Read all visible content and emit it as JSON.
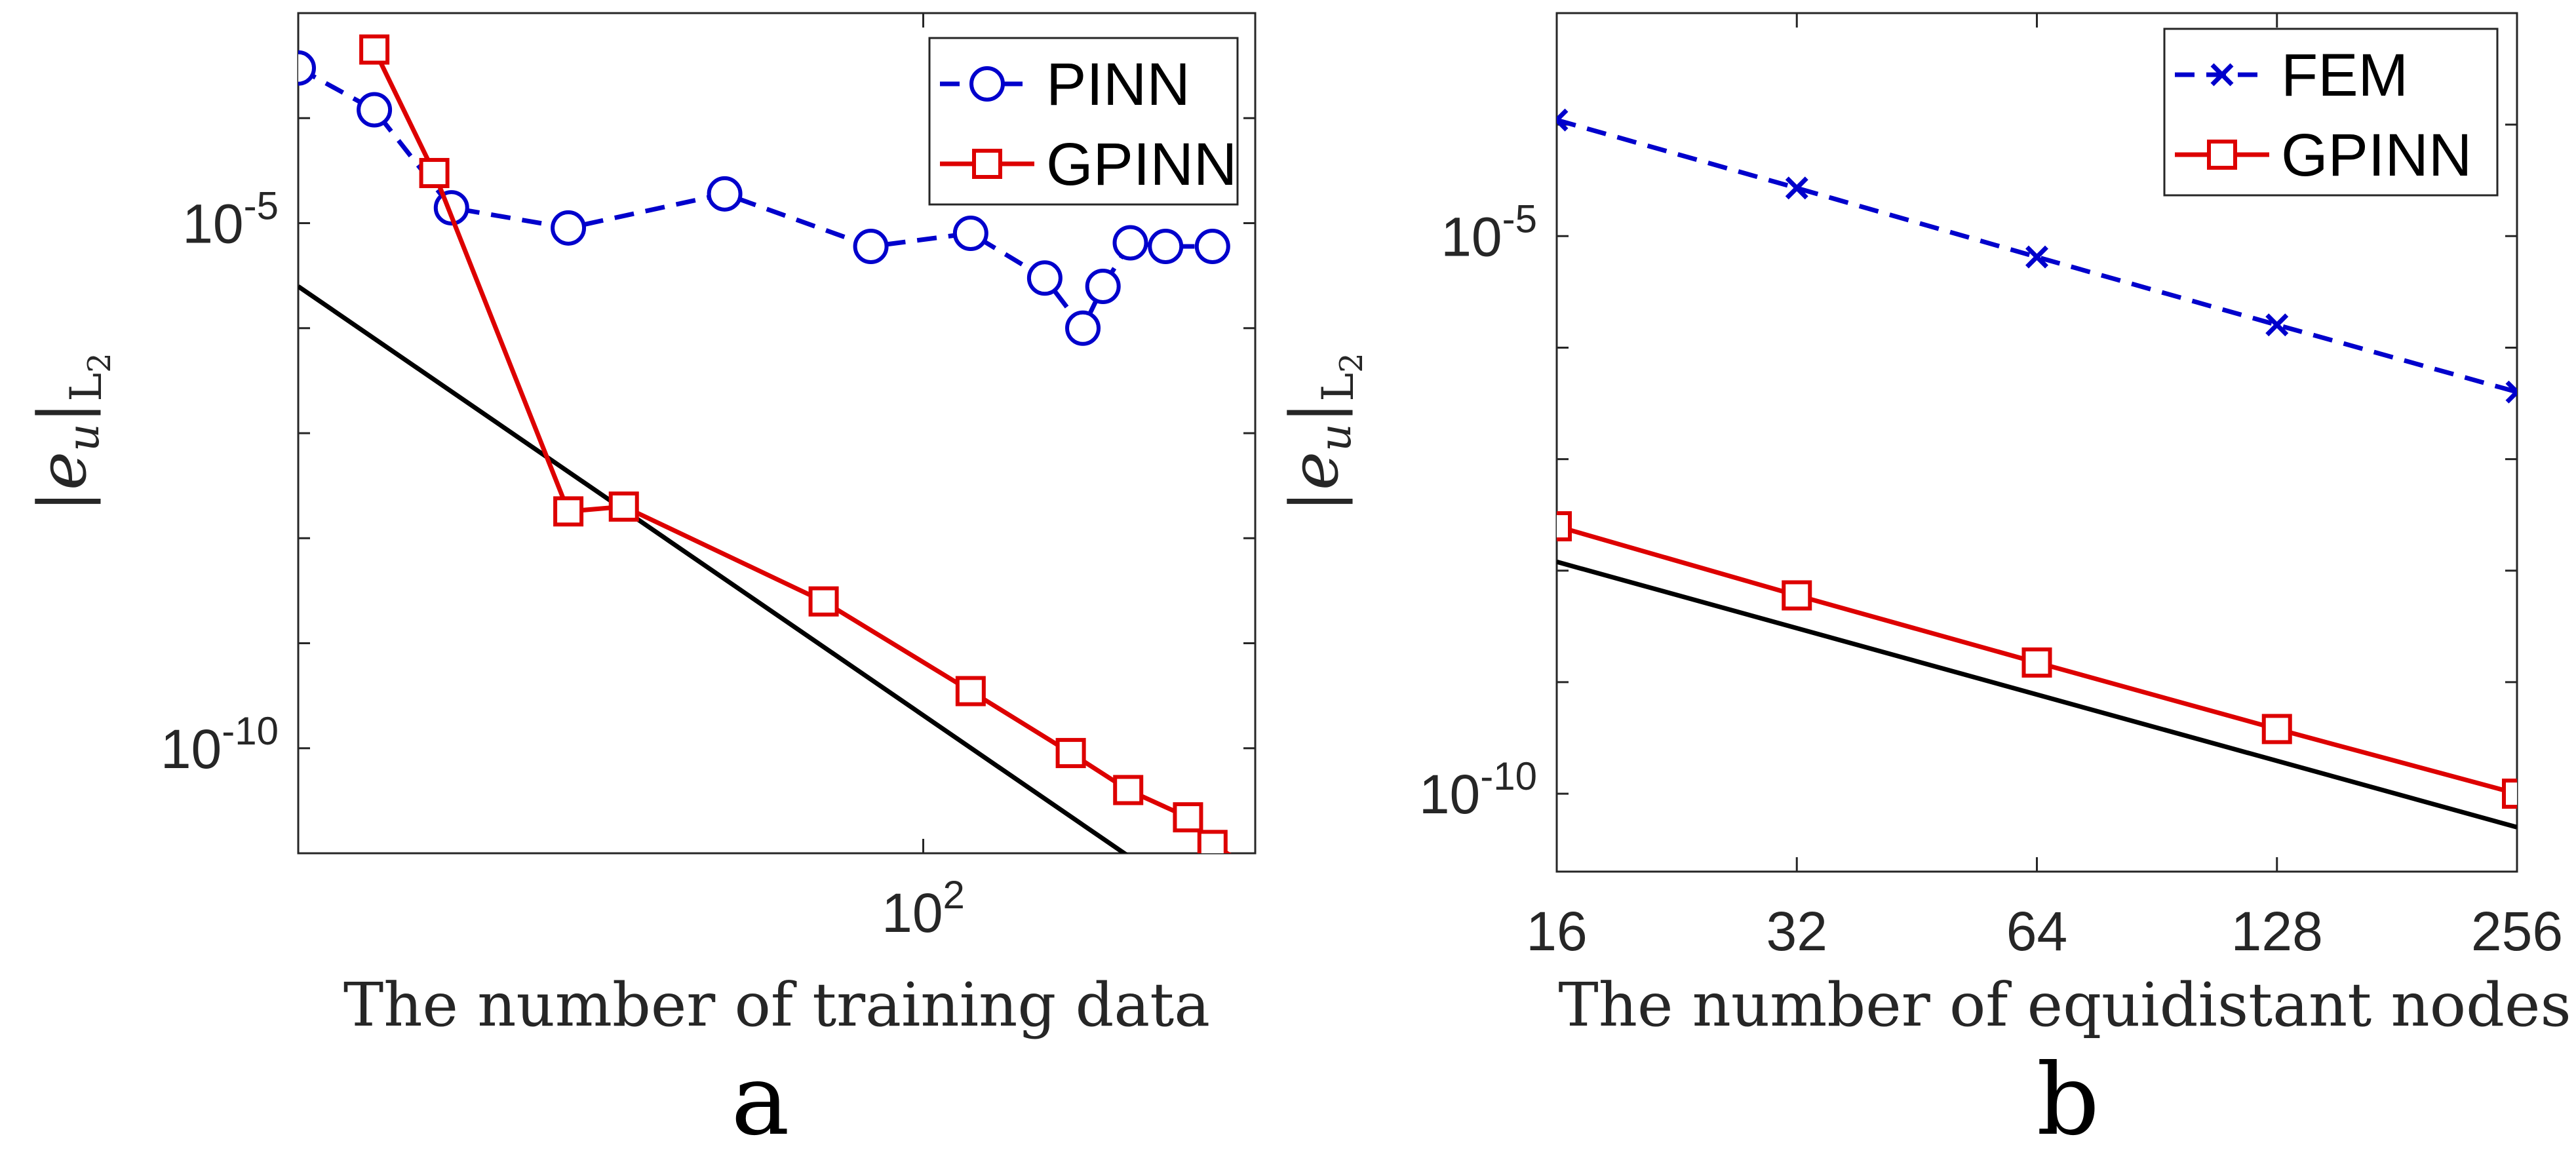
{
  "chart_data": [
    {
      "type": "line",
      "panel_label": "a",
      "xlabel": "The number of training data",
      "ylabel": "|e_u|_{L_2}",
      "xscale": "log",
      "yscale": "log",
      "xlim": [
        8.1,
        380
      ],
      "ylim": [
        1e-11,
        0.001
      ],
      "xticks": [
        {
          "value": 100,
          "label": "10^2"
        }
      ],
      "yticks": [
        {
          "value": 1e-05,
          "label": "10^-5"
        },
        {
          "value": 1e-10,
          "label": "10^-10"
        }
      ],
      "legend_position": "top-right",
      "series": [
        {
          "name": "PINN",
          "color": "#0000cc",
          "style": "dashed",
          "marker": "circle",
          "x": [
            8.1,
            11,
            15,
            24,
            45,
            81,
            121,
            163,
            190,
            206,
            230,
            265,
            320
          ],
          "y": [
            0.0003,
            0.00012,
            1.4e-05,
            9e-06,
            1.9e-05,
            6e-06,
            8e-06,
            3e-06,
            1e-06,
            2.5e-06,
            6.5e-06,
            6e-06,
            6e-06
          ]
        },
        {
          "name": "GPINN",
          "color": "#dd0000",
          "style": "solid",
          "marker": "square",
          "x": [
            11,
            14,
            24,
            30,
            67,
            121,
            181,
            228,
            290,
            320,
            380
          ],
          "y": [
            0.00045,
            3e-05,
            1.8e-08,
            2e-08,
            2.5e-09,
            3.5e-10,
            9e-11,
            4e-11,
            2.2e-11,
            1.2e-11,
            7e-12
          ]
        }
      ],
      "reference_line": {
        "color": "#000000",
        "x": [
          8.1,
          345
        ],
        "y": [
          2.5e-06,
          2e-12
        ]
      }
    },
    {
      "type": "line",
      "panel_label": "b",
      "xlabel": "The number of equidistant nodes",
      "ylabel": "|e_u|_{L_2}",
      "xscale": "log",
      "yscale": "log",
      "xlim": [
        16,
        256
      ],
      "ylim": [
        2e-11,
        0.001
      ],
      "xticks": [
        {
          "value": 16,
          "label": "16"
        },
        {
          "value": 32,
          "label": "32"
        },
        {
          "value": 64,
          "label": "64"
        },
        {
          "value": 128,
          "label": "128"
        },
        {
          "value": 256,
          "label": "256"
        }
      ],
      "yticks": [
        {
          "value": 1e-05,
          "label": "10^-5"
        },
        {
          "value": 1e-10,
          "label": "10^-10"
        }
      ],
      "legend_position": "top-right",
      "series": [
        {
          "name": "FEM",
          "color": "#0000cc",
          "style": "dashed",
          "marker": "x",
          "x": [
            16,
            32,
            64,
            128,
            256
          ],
          "y": [
            0.00011,
            2.7e-05,
            6.5e-06,
            1.6e-06,
            4e-07
          ]
        },
        {
          "name": "GPINN",
          "color": "#dd0000",
          "style": "solid",
          "marker": "square",
          "x": [
            16,
            32,
            64,
            128,
            256
          ],
          "y": [
            2.5e-08,
            6e-09,
            1.5e-09,
            3.8e-10,
            1e-10
          ]
        }
      ],
      "reference_line": {
        "color": "#000000",
        "x": [
          16,
          256
        ],
        "y": [
          1.2e-08,
          5e-11
        ]
      }
    }
  ]
}
